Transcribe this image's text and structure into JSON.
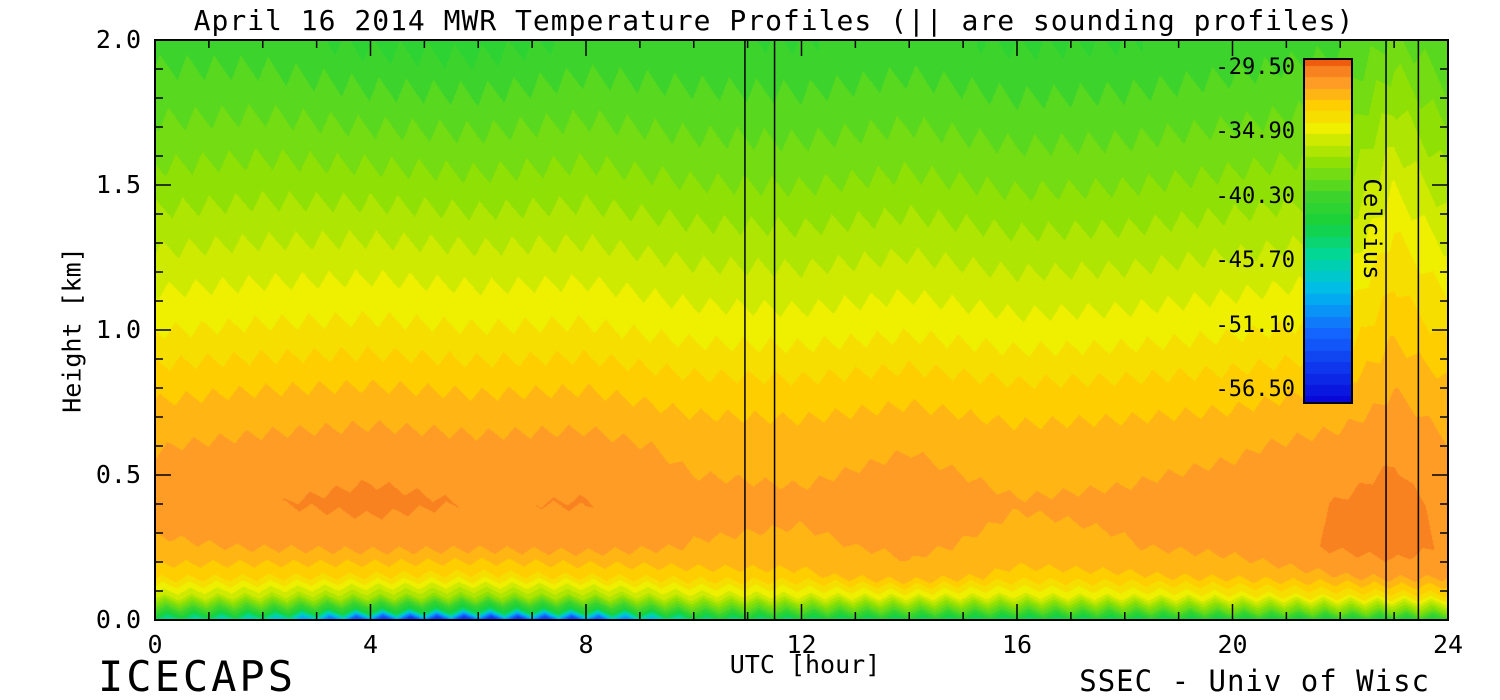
{
  "page": {
    "title": "April 16 2014 MWR Temperature Profiles (|| are sounding profiles)",
    "footer_left": "ICECAPS",
    "footer_right": "SSEC - Univ of Wisc"
  },
  "axes": {
    "xlabel": "UTC [hour]",
    "ylabel": "Height [km]",
    "x_tick_labels": [
      "0",
      "4",
      "8",
      "12",
      "16",
      "20",
      "24"
    ],
    "x_tick_values": [
      0,
      4,
      8,
      12,
      16,
      20,
      24
    ],
    "x_minor_step": 1,
    "y_tick_labels": [
      "0.0",
      "0.5",
      "1.0",
      "1.5",
      "2.0"
    ],
    "y_tick_values": [
      0,
      0.5,
      1.0,
      1.5,
      2.0
    ],
    "y_minor_step": 0.1,
    "xlim": [
      0,
      24
    ],
    "ylim": [
      0,
      2
    ]
  },
  "colorbar": {
    "label": "Celcius",
    "tick_labels": [
      "-29.50",
      "-34.90",
      "-40.30",
      "-45.70",
      "-51.10",
      "-56.50"
    ],
    "max": -29.5,
    "min": -56.5
  },
  "chart_data": {
    "type": "heatmap",
    "title": "April 16 2014 MWR Temperature Profiles (|| are sounding profiles)",
    "xlabel": "UTC [hour]",
    "ylabel": "Height [km]",
    "units": "Celsius",
    "xlim": [
      0,
      24
    ],
    "ylim": [
      0,
      2
    ],
    "sounding_profile_hours": [
      10.95,
      11.5,
      22.85,
      23.45
    ],
    "x_hours": [
      0,
      2,
      4,
      6,
      8,
      10,
      12,
      14,
      16,
      18,
      20,
      22,
      23,
      24
    ],
    "y_km": [
      0.0,
      0.03,
      0.08,
      0.15,
      0.25,
      0.4,
      0.6,
      0.8,
      1.0,
      1.25,
      1.5,
      1.75,
      2.0
    ],
    "temperature_c": [
      [
        -44.5,
        -46.0,
        -53.0,
        -54.0,
        -52.5,
        -44.0,
        -43.5,
        -43.0,
        -43.5,
        -43.0,
        -42.5,
        -42.0,
        -42.0,
        -41.5
      ],
      [
        -40.5,
        -41.0,
        -42.5,
        -43.5,
        -42.5,
        -40.0,
        -39.8,
        -39.5,
        -39.8,
        -39.5,
        -39.0,
        -38.5,
        -38.3,
        -38.0
      ],
      [
        -36.0,
        -36.4,
        -37.0,
        -37.5,
        -37.0,
        -35.8,
        -35.5,
        -35.2,
        -35.5,
        -35.2,
        -34.8,
        -34.3,
        -34.0,
        -33.8
      ],
      [
        -33.2,
        -33.4,
        -33.6,
        -33.8,
        -33.5,
        -33.0,
        -32.9,
        -31.9,
        -33.0,
        -32.8,
        -32.4,
        -31.8,
        -31.5,
        -31.6
      ],
      [
        -31.9,
        -31.7,
        -31.5,
        -31.6,
        -31.4,
        -31.8,
        -31.9,
        -31.6,
        -32.0,
        -31.8,
        -31.5,
        -30.7,
        -30.4,
        -31.0
      ],
      [
        -31.4,
        -30.9,
        -30.6,
        -30.9,
        -30.8,
        -31.5,
        -31.6,
        -31.3,
        -31.7,
        -31.6,
        -31.3,
        -30.8,
        -30.5,
        -31.1
      ],
      [
        -31.8,
        -31.5,
        -31.3,
        -31.5,
        -31.4,
        -32.0,
        -32.1,
        -31.8,
        -32.2,
        -32.1,
        -31.9,
        -31.4,
        -31.0,
        -31.7
      ],
      [
        -32.9,
        -32.7,
        -32.6,
        -32.8,
        -32.7,
        -33.2,
        -33.3,
        -33.0,
        -33.4,
        -33.3,
        -33.1,
        -32.6,
        -31.8,
        -32.4
      ],
      [
        -34.5,
        -34.3,
        -34.2,
        -34.4,
        -34.3,
        -34.8,
        -34.9,
        -34.6,
        -35.0,
        -34.9,
        -34.6,
        -34.2,
        -32.8,
        -33.8
      ],
      [
        -36.1,
        -35.9,
        -35.8,
        -36.0,
        -35.9,
        -36.4,
        -36.5,
        -36.2,
        -36.6,
        -36.5,
        -36.2,
        -35.8,
        -34.0,
        -35.2
      ],
      [
        -37.7,
        -37.5,
        -37.6,
        -37.8,
        -37.6,
        -38.0,
        -38.1,
        -37.8,
        -38.2,
        -38.1,
        -37.8,
        -37.4,
        -35.4,
        -36.8
      ],
      [
        -39.1,
        -39.0,
        -39.3,
        -39.4,
        -39.1,
        -39.4,
        -39.5,
        -39.2,
        -39.6,
        -39.5,
        -39.2,
        -38.8,
        -37.0,
        -38.4
      ],
      [
        -40.3,
        -40.4,
        -41.0,
        -41.2,
        -40.6,
        -40.7,
        -40.8,
        -40.5,
        -40.9,
        -40.8,
        -40.5,
        -40.1,
        -38.8,
        -39.9
      ]
    ],
    "colormap_stops": [
      [
        -56.5,
        "#0808d8"
      ],
      [
        -51.1,
        "#1464ff"
      ],
      [
        -47.8,
        "#00baee"
      ],
      [
        -45.0,
        "#00d89c"
      ],
      [
        -42.5,
        "#16d23c"
      ],
      [
        -40.3,
        "#3cd42c"
      ],
      [
        -37.5,
        "#92e004"
      ],
      [
        -34.9,
        "#eef000"
      ],
      [
        -33.0,
        "#ffcc00"
      ],
      [
        -31.5,
        "#ffa228"
      ],
      [
        -30.2,
        "#f87c1e"
      ],
      [
        -29.5,
        "#ee5c0e"
      ]
    ],
    "contour_step_c": 0.9
  }
}
